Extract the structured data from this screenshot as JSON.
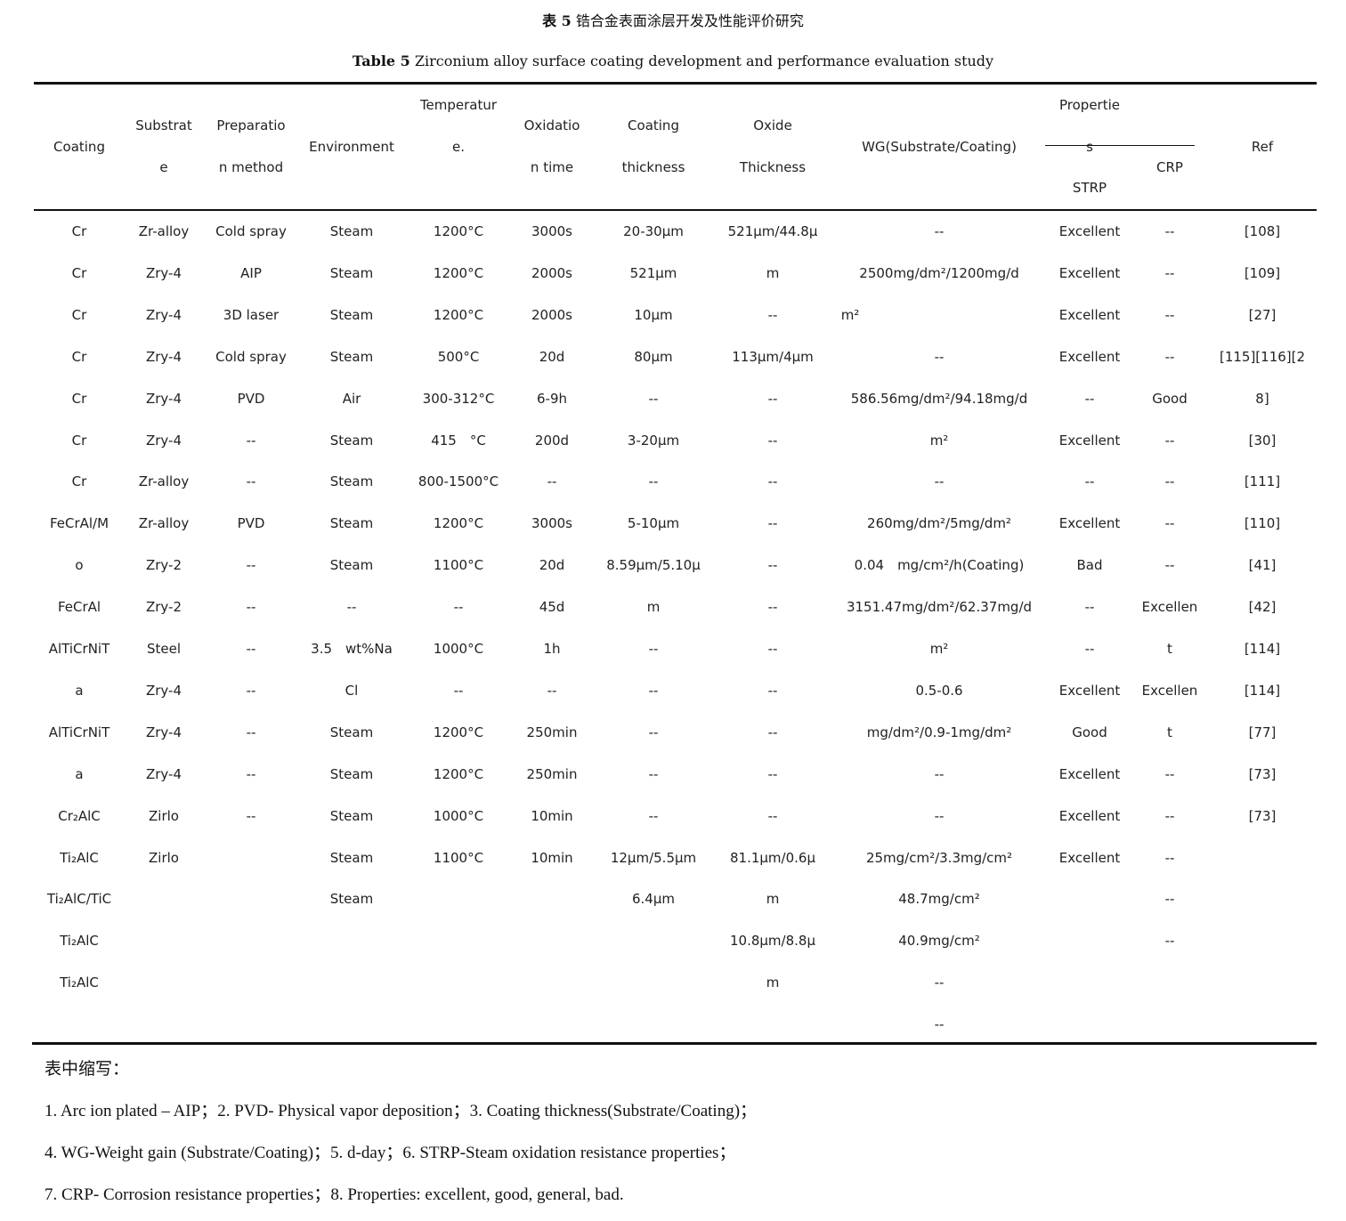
{
  "caption_cn": {
    "label": "表 5",
    "text": "锆合金表面涂层开发及性能评价研究"
  },
  "caption_en": {
    "label": "Table 5",
    "text": "Zirconium alloy surface coating development and performance evaluation study"
  },
  "headers": {
    "coating": [
      "Coating"
    ],
    "substrate": [
      "Substrat",
      "e"
    ],
    "preparation": [
      "Preparatio",
      "n method"
    ],
    "environment": [
      "Environment"
    ],
    "temperature": [
      "Temperatur",
      "e."
    ],
    "oxidation_time": [
      "Oxidatio",
      "n time"
    ],
    "coating_thickness": [
      "Coating",
      "thickness"
    ],
    "oxide_thickness": [
      "Oxide",
      "Thickness"
    ],
    "wg": [
      "WG(Substrate/Coating)"
    ],
    "properties": [
      "Propertie",
      "s"
    ],
    "strp": "STRP",
    "crp": "CRP",
    "ref": "Ref"
  },
  "rows": [
    [
      "Cr",
      "Zr-alloy",
      "Cold spray",
      "Steam",
      "1200°C",
      "3000s",
      "20-30μm",
      "521μm/44.8μ",
      "--",
      "Excellent",
      "--",
      "[108]"
    ],
    [
      "Cr",
      "Zry-4",
      "AIP",
      "Steam",
      "1200°C",
      "2000s",
      "521μm",
      "m",
      "2500mg/dm²/1200mg/d",
      "Excellent",
      "--",
      "[109]"
    ],
    [
      "Cr",
      "Zry-4",
      "3D laser",
      "Steam",
      "1200°C",
      "2000s",
      "10μm",
      "--",
      "m²",
      "Excellent",
      "--",
      "[27]"
    ],
    [
      "Cr",
      "Zry-4",
      "Cold spray",
      "Steam",
      "500°C",
      "20d",
      "80μm",
      "113μm/4μm",
      "--",
      "Excellent",
      "--",
      "[115][116][2"
    ],
    [
      "Cr",
      "Zry-4",
      "PVD",
      "Air",
      "300-312°C",
      "6-9h",
      "--",
      "--",
      "586.56mg/dm²/94.18mg/d",
      "--",
      "Good",
      "8]"
    ],
    [
      "Cr",
      "Zry-4",
      "--",
      "Steam",
      "415 °C",
      "200d",
      "3-20μm",
      "--",
      "m²",
      "Excellent",
      "--",
      "[30]"
    ],
    [
      "Cr",
      "Zr-alloy",
      "--",
      "Steam",
      "800-1500°C",
      "--",
      "--",
      "--",
      "--",
      "--",
      "--",
      "[111]"
    ],
    [
      "FeCrAl/M",
      "Zr-alloy",
      "PVD",
      "Steam",
      "1200°C",
      "3000s",
      "5-10μm",
      "--",
      "260mg/dm²/5mg/dm²",
      "Excellent",
      "--",
      "[110]"
    ],
    [
      "o",
      "Zry-2",
      "--",
      "Steam",
      "1100°C",
      "20d",
      "8.59μm/5.10μ",
      "--",
      "0.04 mg/cm²/h(Coating)",
      "Bad",
      "--",
      "[41]"
    ],
    [
      "FeCrAl",
      "Zry-2",
      "--",
      "--",
      "--",
      "45d",
      "m",
      "--",
      "3151.47mg/dm²/62.37mg/d",
      "--",
      "Excellen",
      "[42]"
    ],
    [
      "AlTiCrNiT",
      "Steel",
      "--",
      "3.5 wt%Na",
      "1000°C",
      "1h",
      "--",
      "--",
      "m²",
      "--",
      "t",
      "[114]"
    ],
    [
      "a",
      "Zry-4",
      "--",
      "Cl",
      "--",
      "--",
      "--",
      "--",
      "0.5-0.6",
      "Excellent",
      "Excellen",
      "[114]"
    ],
    [
      "AlTiCrNiT",
      "Zry-4",
      "--",
      "Steam",
      "1200°C",
      "250min",
      "--",
      "--",
      "mg/dm²/0.9-1mg/dm²",
      "Good",
      "t",
      "[77]"
    ],
    [
      "a",
      "Zry-4",
      "--",
      "Steam",
      "1200°C",
      "250min",
      "--",
      "--",
      "--",
      "Excellent",
      "--",
      "[73]"
    ],
    [
      "Cr₂AlC",
      "Zirlo",
      "--",
      "Steam",
      "1000°C",
      "10min",
      "--",
      "--",
      "--",
      "Excellent",
      "--",
      "[73]"
    ],
    [
      "Ti₂AlC",
      "Zirlo",
      "",
      "Steam",
      "1100°C",
      "10min",
      "12μm/5.5μm",
      "81.1μm/0.6μ",
      "25mg/cm²/3.3mg/cm²",
      "Excellent",
      "--",
      ""
    ],
    [
      "Ti₂AlC/TiC",
      "",
      "",
      "Steam",
      "",
      "",
      "6.4μm",
      "m",
      "48.7mg/cm²",
      "",
      "--",
      ""
    ],
    [
      "Ti₂AlC",
      "",
      "",
      "",
      "",
      "",
      "",
      "10.8μm/8.8μ",
      "40.9mg/cm²",
      "",
      "--",
      ""
    ],
    [
      "Ti₂AlC",
      "",
      "",
      "",
      "",
      "",
      "",
      "m",
      "--",
      "",
      "",
      ""
    ],
    [
      "",
      "",
      "",
      "",
      "",
      "",
      "",
      "",
      "--",
      "",
      "",
      ""
    ]
  ],
  "notes": [
    "表中缩写：",
    "1. Arc ion plated – AIP；2. PVD- Physical vapor deposition；3. Coating thickness(Substrate/Coating)；",
    "4. WG-Weight gain (Substrate/Coating)；5. d-day；6. STRP-Steam oxidation resistance properties；",
    "7. CRP- Corrosion resistance properties；8. Properties: excellent, good, general, bad."
  ]
}
